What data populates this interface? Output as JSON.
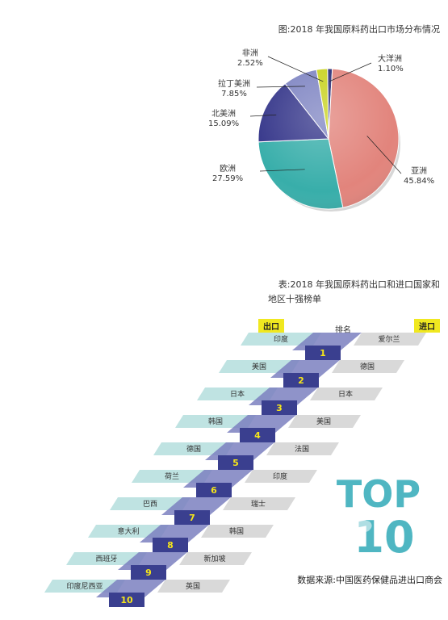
{
  "chart_data": [
    {
      "type": "pie",
      "title": "图:2018 年我国原料药出口市场分布情况",
      "slices": [
        {
          "name": "亚洲",
          "pct_label": "45.84%",
          "value": 45.84,
          "color": "#e2847c"
        },
        {
          "name": "欧洲",
          "pct_label": "27.59%",
          "value": 27.59,
          "color": "#38aeaa"
        },
        {
          "name": "北美洲",
          "pct_label": "15.09%",
          "value": 15.09,
          "color": "#35368a"
        },
        {
          "name": "拉丁美洲",
          "pct_label": "7.85%",
          "value": 7.85,
          "color": "#7e84c2"
        },
        {
          "name": "非洲",
          "pct_label": "2.52%",
          "value": 2.52,
          "color": "#c8d21e"
        },
        {
          "name": "大洋洲",
          "pct_label": "1.10%",
          "value": 1.1,
          "color": "#262a73"
        }
      ]
    },
    {
      "type": "table",
      "title_line1": "表:2018 年我国原料药出口和进口国家和",
      "title_line2": "地区十强榜单",
      "export_label": "出口",
      "rank_label": "排名",
      "import_label": "进口",
      "rows": [
        {
          "rank": "1",
          "export": "印度",
          "import": "爱尔兰"
        },
        {
          "rank": "2",
          "export": "美国",
          "import": "德国"
        },
        {
          "rank": "3",
          "export": "日本",
          "import": "日本"
        },
        {
          "rank": "4",
          "export": "韩国",
          "import": "美国"
        },
        {
          "rank": "5",
          "export": "德国",
          "import": "法国"
        },
        {
          "rank": "6",
          "export": "荷兰",
          "import": "印度"
        },
        {
          "rank": "7",
          "export": "巴西",
          "import": "瑞士"
        },
        {
          "rank": "8",
          "export": "意大利",
          "import": "韩国"
        },
        {
          "rank": "9",
          "export": "西班牙",
          "import": "新加坡"
        },
        {
          "rank": "10",
          "export": "印度尼西亚",
          "import": "英国"
        }
      ]
    }
  ],
  "top10_logo": {
    "line1": "TOP",
    "line2": "10"
  },
  "source": "数据来源:中国医药保健品进出口商会",
  "colors": {
    "export_band": "#bfe3e2",
    "import_band": "#d9d9d9",
    "rank_box": "#3a3f8f",
    "rank_text": "#f5e51a",
    "stair": "#7b80c0",
    "tag_bg": "#f0e820",
    "logo": "#4fb6c2"
  }
}
